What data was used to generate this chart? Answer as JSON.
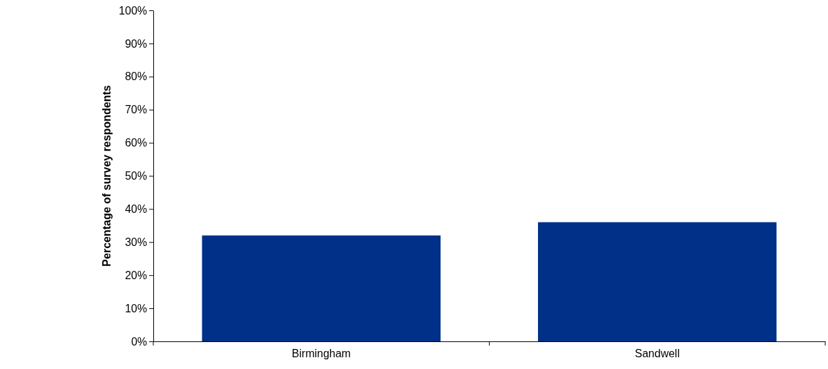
{
  "chart_data": {
    "type": "bar",
    "ylabel": "Percentage of survey respondents",
    "categories": [
      "Birmingham",
      "Sandwell"
    ],
    "values": [
      32,
      36
    ],
    "color": "#003087",
    "ylim": [
      0,
      100
    ],
    "yticks": [
      {
        "value": 0,
        "label": "0%"
      },
      {
        "value": 10,
        "label": "10%"
      },
      {
        "value": 20,
        "label": "20%"
      },
      {
        "value": 30,
        "label": "30%"
      },
      {
        "value": 40,
        "label": "40%"
      },
      {
        "value": 50,
        "label": "50%"
      },
      {
        "value": 60,
        "label": "60%"
      },
      {
        "value": 70,
        "label": "70%"
      },
      {
        "value": 80,
        "label": "80%"
      },
      {
        "value": 90,
        "label": "90%"
      },
      {
        "value": 100,
        "label": "100%"
      }
    ],
    "grid": false
  }
}
